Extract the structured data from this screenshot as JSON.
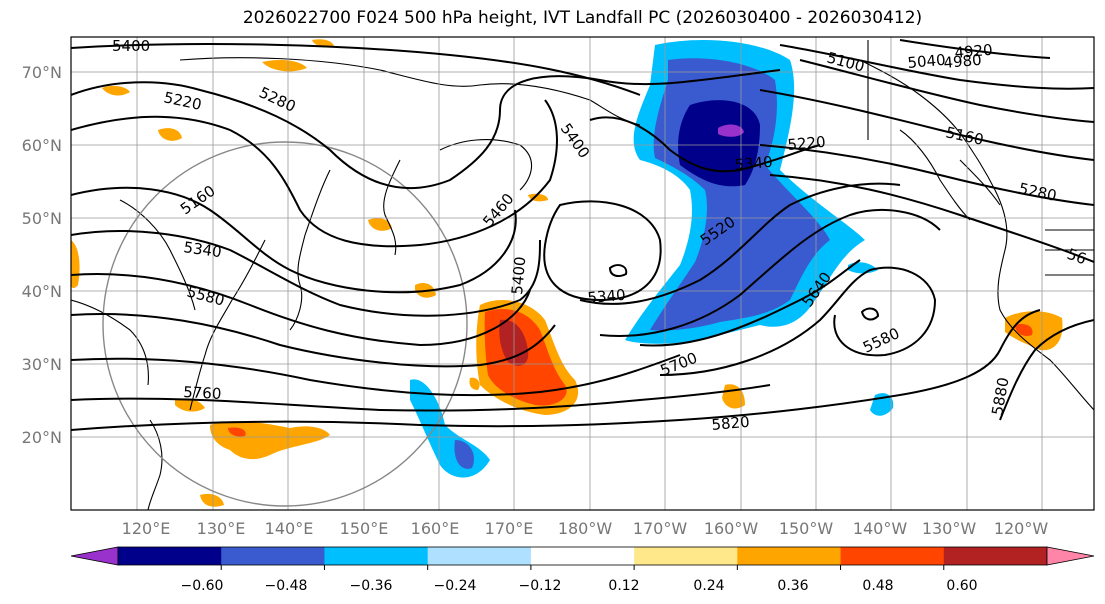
{
  "title": "2026022700 F024 500 hPa height, IVT Landfall PC (2026030400 - 2026030412)",
  "lat_labels": [
    "70°N",
    "60°N",
    "50°N",
    "40°N",
    "30°N",
    "20°N"
  ],
  "lon_labels": [
    "120°E",
    "130°E",
    "140°E",
    "150°E",
    "160°E",
    "170°E",
    "180°W",
    "170°W",
    "160°W",
    "150°W",
    "140°W",
    "130°W",
    "120°W"
  ],
  "contour_labels": [
    "5400",
    "5220",
    "5280",
    "5160",
    "5340",
    "5580",
    "5760",
    "5400",
    "5460",
    "5400",
    "5340",
    "5520",
    "5700",
    "5820",
    "5640",
    "5580",
    "5880",
    "5100",
    "5040",
    "4980",
    "4920",
    "5160",
    "5280",
    "5220",
    "5340",
    "56"
  ],
  "colorbar": {
    "ticks": [
      "−0.60",
      "−0.48",
      "−0.36",
      "−0.24",
      "−0.12",
      "0.12",
      "0.24",
      "0.36",
      "0.48",
      "0.60"
    ],
    "colors": [
      "#9932cc",
      "#00008b",
      "#3a5bd0",
      "#00bfff",
      "#b0e0ff",
      "#ffffff",
      "#ffe88a",
      "#ffa500",
      "#ff4500",
      "#b22222",
      "#ff85a8"
    ]
  }
}
